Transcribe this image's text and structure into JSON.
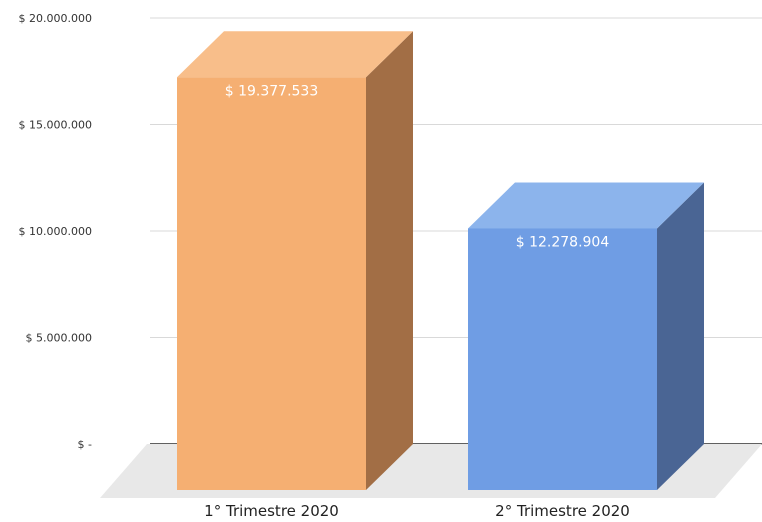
{
  "chart_data": {
    "type": "bar",
    "style": "3d-column",
    "categories": [
      "1° Trimestre 2020",
      "2° Trimestre 2020"
    ],
    "values": [
      19377533,
      12278904
    ],
    "data_labels": [
      "$  19.377.533",
      "$  12.278.904"
    ],
    "y_ticks": [
      {
        "value": 0,
        "label": "$       -"
      },
      {
        "value": 5000000,
        "label": "$  5.000.000"
      },
      {
        "value": 10000000,
        "label": "$  10.000.000"
      },
      {
        "value": 15000000,
        "label": "$  15.000.000"
      },
      {
        "value": 20000000,
        "label": "$  20.000.000"
      }
    ],
    "ylim": [
      0,
      20000000
    ],
    "grid": true,
    "legend": "none",
    "colors": {
      "bar1": {
        "front": "#F5AF72",
        "top": "#F8BE8A",
        "side": "#A26E45"
      },
      "bar2": {
        "front": "#6F9DE4",
        "top": "#8CB4EC",
        "side": "#4A6594"
      },
      "grid": "#D9D9D9",
      "axis": "#000000",
      "floor": "#E8E8E8"
    }
  }
}
